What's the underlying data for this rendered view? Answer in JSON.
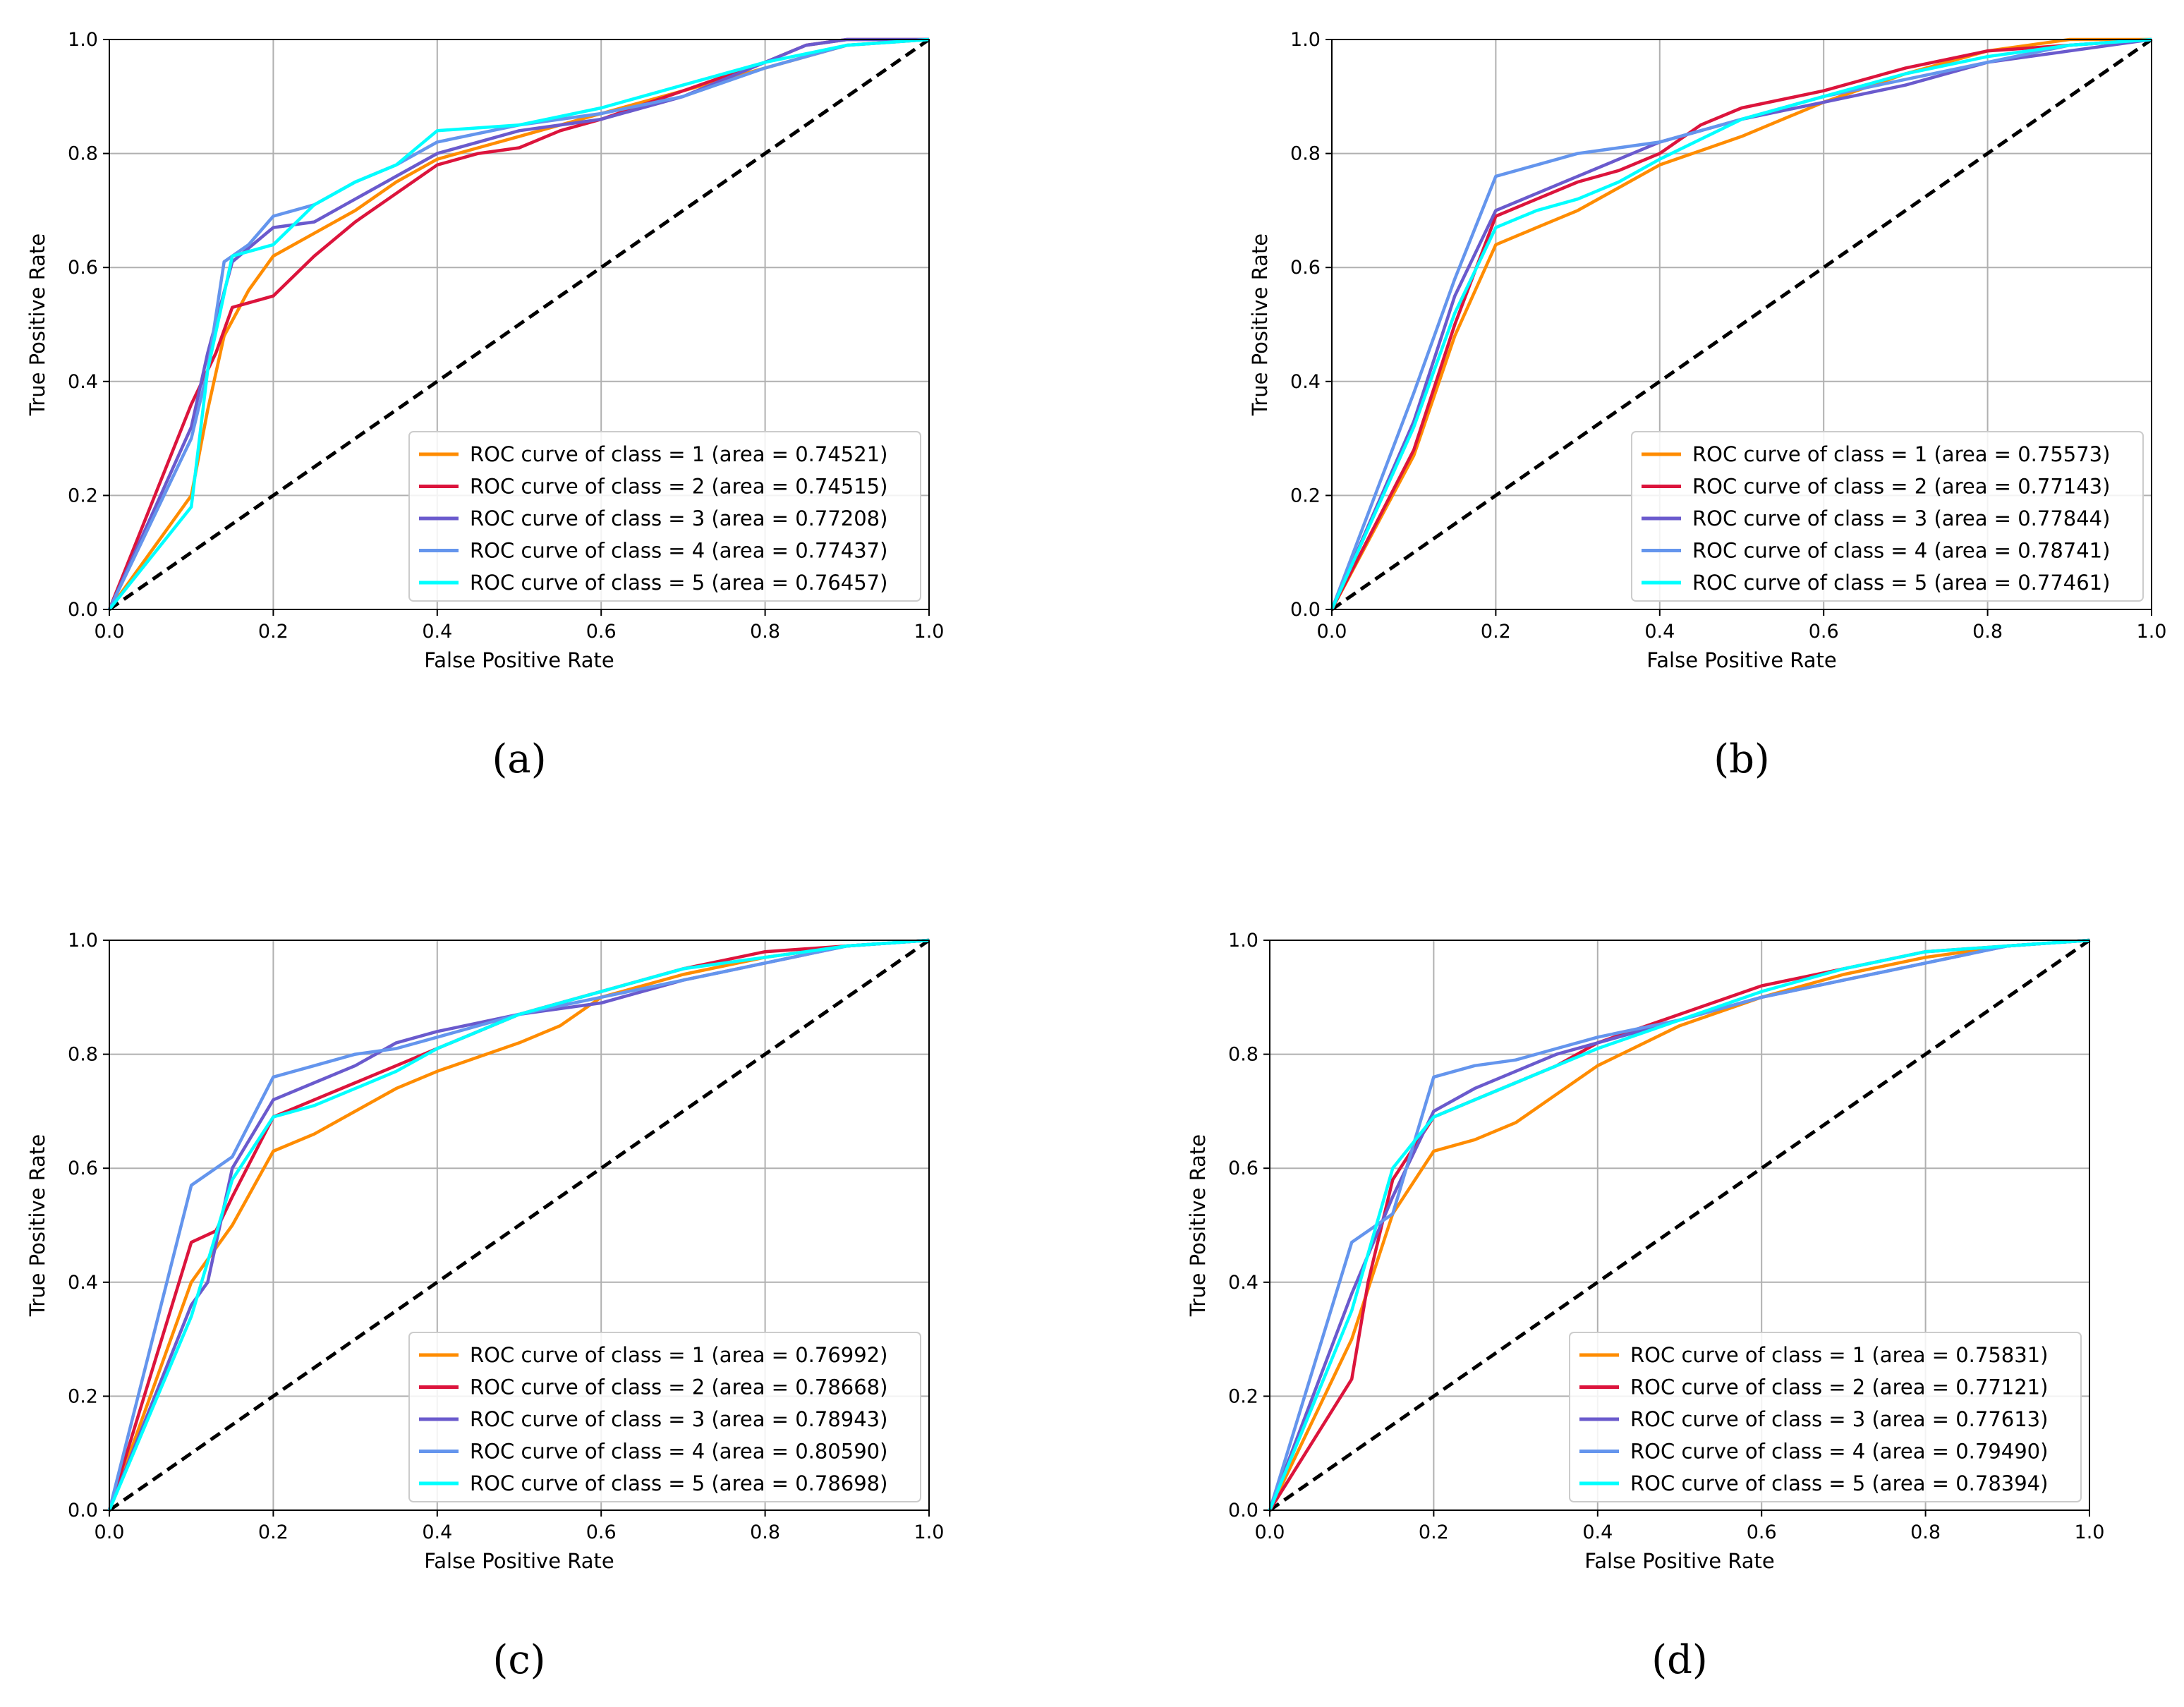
{
  "colors": {
    "class1": "#ff8c00",
    "class2": "#dc143c",
    "class3": "#6a5acd",
    "class4": "#6495ed",
    "class5": "#00ffff",
    "diagonal": "#000000",
    "grid": "#b0b0b0"
  },
  "chart_data": [
    {
      "type": "line",
      "caption": "(a)",
      "xlabel": "False Positive Rate",
      "ylabel": "True Positive Rate",
      "xlim": [
        0,
        1
      ],
      "ylim": [
        0,
        1
      ],
      "xticks": [
        "0.0",
        "0.2",
        "0.4",
        "0.6",
        "0.8",
        "1.0"
      ],
      "yticks": [
        "0.0",
        "0.2",
        "0.4",
        "0.6",
        "0.8",
        "1.0"
      ],
      "grid": true,
      "legend_position": "lower-right",
      "series": [
        {
          "name": "ROC curve of class = 1 (area = 0.74521)",
          "color_key": "class1",
          "x": [
            0,
            0.1,
            0.12,
            0.14,
            0.17,
            0.2,
            0.25,
            0.3,
            0.35,
            0.4,
            0.45,
            0.5,
            0.6,
            0.7,
            0.8,
            0.9,
            1.0
          ],
          "y": [
            0,
            0.2,
            0.35,
            0.48,
            0.56,
            0.62,
            0.66,
            0.7,
            0.75,
            0.79,
            0.81,
            0.83,
            0.87,
            0.91,
            0.95,
            0.99,
            1.0
          ]
        },
        {
          "name": "ROC curve of class = 2 (area = 0.74515)",
          "color_key": "class2",
          "x": [
            0,
            0.1,
            0.13,
            0.15,
            0.2,
            0.25,
            0.3,
            0.35,
            0.4,
            0.45,
            0.5,
            0.55,
            0.6,
            0.7,
            0.8,
            0.85,
            0.9,
            1.0
          ],
          "y": [
            0,
            0.36,
            0.45,
            0.53,
            0.55,
            0.62,
            0.68,
            0.73,
            0.78,
            0.8,
            0.81,
            0.84,
            0.86,
            0.91,
            0.96,
            0.99,
            1.0,
            1.0
          ]
        },
        {
          "name": "ROC curve of class = 3 (area = 0.77208)",
          "color_key": "class3",
          "x": [
            0,
            0.1,
            0.12,
            0.15,
            0.2,
            0.25,
            0.3,
            0.35,
            0.4,
            0.5,
            0.6,
            0.7,
            0.8,
            0.85,
            0.9,
            1.0
          ],
          "y": [
            0,
            0.32,
            0.45,
            0.61,
            0.67,
            0.68,
            0.72,
            0.76,
            0.8,
            0.84,
            0.86,
            0.9,
            0.96,
            0.99,
            1.0,
            1.0
          ]
        },
        {
          "name": "ROC curve of class = 4 (area = 0.77437)",
          "color_key": "class4",
          "x": [
            0,
            0.1,
            0.12,
            0.14,
            0.17,
            0.2,
            0.25,
            0.3,
            0.35,
            0.4,
            0.5,
            0.6,
            0.7,
            0.8,
            0.9,
            1.0
          ],
          "y": [
            0,
            0.3,
            0.42,
            0.61,
            0.64,
            0.69,
            0.71,
            0.75,
            0.78,
            0.82,
            0.85,
            0.87,
            0.9,
            0.95,
            0.99,
            1.0
          ]
        },
        {
          "name": "ROC curve of class = 5 (area = 0.76457)",
          "color_key": "class5",
          "x": [
            0,
            0.1,
            0.12,
            0.15,
            0.2,
            0.25,
            0.3,
            0.35,
            0.4,
            0.5,
            0.6,
            0.7,
            0.8,
            0.9,
            1.0
          ],
          "y": [
            0,
            0.18,
            0.42,
            0.62,
            0.64,
            0.71,
            0.75,
            0.78,
            0.84,
            0.85,
            0.88,
            0.92,
            0.96,
            0.99,
            1.0
          ]
        }
      ]
    },
    {
      "type": "line",
      "caption": "(b)",
      "xlabel": "False Positive Rate",
      "ylabel": "True Positive Rate",
      "xlim": [
        0,
        1
      ],
      "ylim": [
        0,
        1
      ],
      "xticks": [
        "0.0",
        "0.2",
        "0.4",
        "0.6",
        "0.8",
        "1.0"
      ],
      "yticks": [
        "0.0",
        "0.2",
        "0.4",
        "0.6",
        "0.8",
        "1.0"
      ],
      "grid": true,
      "legend_position": "lower-right",
      "series": [
        {
          "name": "ROC curve of class = 1 (area = 0.75573)",
          "color_key": "class1",
          "x": [
            0,
            0.1,
            0.15,
            0.2,
            0.25,
            0.3,
            0.35,
            0.4,
            0.5,
            0.6,
            0.7,
            0.8,
            0.9,
            1.0
          ],
          "y": [
            0,
            0.27,
            0.48,
            0.64,
            0.67,
            0.7,
            0.74,
            0.78,
            0.83,
            0.89,
            0.94,
            0.98,
            1.0,
            1.0
          ]
        },
        {
          "name": "ROC curve of class = 2 (area = 0.77143)",
          "color_key": "class2",
          "x": [
            0,
            0.1,
            0.15,
            0.2,
            0.25,
            0.3,
            0.35,
            0.4,
            0.45,
            0.5,
            0.6,
            0.7,
            0.8,
            0.9,
            1.0
          ],
          "y": [
            0,
            0.28,
            0.5,
            0.69,
            0.72,
            0.75,
            0.77,
            0.8,
            0.85,
            0.88,
            0.91,
            0.95,
            0.98,
            0.99,
            1.0
          ]
        },
        {
          "name": "ROC curve of class = 3 (area = 0.77844)",
          "color_key": "class3",
          "x": [
            0,
            0.1,
            0.15,
            0.2,
            0.25,
            0.3,
            0.35,
            0.4,
            0.45,
            0.5,
            0.6,
            0.7,
            0.8,
            0.9,
            1.0
          ],
          "y": [
            0,
            0.33,
            0.55,
            0.7,
            0.73,
            0.76,
            0.79,
            0.82,
            0.84,
            0.86,
            0.89,
            0.92,
            0.96,
            0.98,
            1.0
          ]
        },
        {
          "name": "ROC curve of class = 4 (area = 0.78741)",
          "color_key": "class4",
          "x": [
            0,
            0.1,
            0.15,
            0.2,
            0.25,
            0.3,
            0.35,
            0.4,
            0.5,
            0.6,
            0.7,
            0.8,
            0.9,
            1.0
          ],
          "y": [
            0,
            0.38,
            0.58,
            0.76,
            0.78,
            0.8,
            0.81,
            0.82,
            0.86,
            0.9,
            0.93,
            0.96,
            0.99,
            1.0
          ]
        },
        {
          "name": "ROC curve of class = 5 (area = 0.77461)",
          "color_key": "class5",
          "x": [
            0,
            0.1,
            0.15,
            0.2,
            0.25,
            0.3,
            0.35,
            0.4,
            0.5,
            0.6,
            0.7,
            0.8,
            0.9,
            1.0
          ],
          "y": [
            0,
            0.32,
            0.52,
            0.67,
            0.7,
            0.72,
            0.75,
            0.79,
            0.86,
            0.9,
            0.94,
            0.97,
            0.99,
            1.0
          ]
        }
      ]
    },
    {
      "type": "line",
      "caption": "(c)",
      "xlabel": "False Positive Rate",
      "ylabel": "True Positive Rate",
      "xlim": [
        0,
        1
      ],
      "ylim": [
        0,
        1
      ],
      "xticks": [
        "0.0",
        "0.2",
        "0.4",
        "0.6",
        "0.8",
        "1.0"
      ],
      "yticks": [
        "0.0",
        "0.2",
        "0.4",
        "0.6",
        "0.8",
        "1.0"
      ],
      "grid": true,
      "legend_position": "lower-right",
      "series": [
        {
          "name": "ROC curve of class = 1 (area = 0.76992)",
          "color_key": "class1",
          "x": [
            0,
            0.1,
            0.15,
            0.2,
            0.25,
            0.3,
            0.35,
            0.4,
            0.5,
            0.55,
            0.6,
            0.7,
            0.8,
            0.9,
            1.0
          ],
          "y": [
            0,
            0.4,
            0.5,
            0.63,
            0.66,
            0.7,
            0.74,
            0.77,
            0.82,
            0.85,
            0.9,
            0.94,
            0.97,
            0.99,
            1.0
          ]
        },
        {
          "name": "ROC curve of class = 2 (area = 0.78668)",
          "color_key": "class2",
          "x": [
            0,
            0.1,
            0.13,
            0.15,
            0.2,
            0.25,
            0.3,
            0.35,
            0.4,
            0.5,
            0.6,
            0.7,
            0.8,
            0.9,
            1.0
          ],
          "y": [
            0,
            0.47,
            0.49,
            0.55,
            0.69,
            0.72,
            0.75,
            0.78,
            0.81,
            0.87,
            0.91,
            0.95,
            0.98,
            0.99,
            1.0
          ]
        },
        {
          "name": "ROC curve of class = 3 (area = 0.78943)",
          "color_key": "class3",
          "x": [
            0,
            0.1,
            0.12,
            0.15,
            0.2,
            0.25,
            0.3,
            0.35,
            0.4,
            0.5,
            0.6,
            0.7,
            0.8,
            0.9,
            1.0
          ],
          "y": [
            0,
            0.36,
            0.4,
            0.6,
            0.72,
            0.75,
            0.78,
            0.82,
            0.84,
            0.87,
            0.89,
            0.93,
            0.96,
            0.99,
            1.0
          ]
        },
        {
          "name": "ROC curve of class = 4 (area = 0.80590)",
          "color_key": "class4",
          "x": [
            0,
            0.1,
            0.15,
            0.2,
            0.25,
            0.3,
            0.35,
            0.4,
            0.5,
            0.6,
            0.7,
            0.8,
            0.9,
            1.0
          ],
          "y": [
            0,
            0.57,
            0.62,
            0.76,
            0.78,
            0.8,
            0.81,
            0.83,
            0.87,
            0.9,
            0.93,
            0.96,
            0.99,
            1.0
          ]
        },
        {
          "name": "ROC curve of class = 5 (area = 0.78698)",
          "color_key": "class5",
          "x": [
            0,
            0.1,
            0.15,
            0.2,
            0.25,
            0.3,
            0.35,
            0.4,
            0.5,
            0.6,
            0.7,
            0.8,
            0.9,
            1.0
          ],
          "y": [
            0,
            0.34,
            0.58,
            0.69,
            0.71,
            0.74,
            0.77,
            0.81,
            0.87,
            0.91,
            0.95,
            0.97,
            0.99,
            1.0
          ]
        }
      ]
    },
    {
      "type": "line",
      "caption": "(d)",
      "xlabel": "False Positive Rate",
      "ylabel": "True Positive Rate",
      "xlim": [
        0,
        1
      ],
      "ylim": [
        0,
        1
      ],
      "xticks": [
        "0.0",
        "0.2",
        "0.4",
        "0.6",
        "0.8",
        "1.0"
      ],
      "yticks": [
        "0.0",
        "0.2",
        "0.4",
        "0.6",
        "0.8",
        "1.0"
      ],
      "grid": true,
      "legend_position": "lower-right",
      "series": [
        {
          "name": "ROC curve of class = 1 (area = 0.75831)",
          "color_key": "class1",
          "x": [
            0,
            0.1,
            0.15,
            0.2,
            0.25,
            0.3,
            0.35,
            0.4,
            0.5,
            0.6,
            0.7,
            0.8,
            0.9,
            1.0
          ],
          "y": [
            0,
            0.3,
            0.52,
            0.63,
            0.65,
            0.68,
            0.73,
            0.78,
            0.85,
            0.9,
            0.94,
            0.97,
            0.99,
            1.0
          ]
        },
        {
          "name": "ROC curve of class = 2 (area = 0.77121)",
          "color_key": "class2",
          "x": [
            0,
            0.1,
            0.12,
            0.15,
            0.2,
            0.25,
            0.3,
            0.35,
            0.4,
            0.5,
            0.6,
            0.7,
            0.8,
            0.9,
            1.0
          ],
          "y": [
            0,
            0.23,
            0.4,
            0.58,
            0.69,
            0.72,
            0.75,
            0.78,
            0.82,
            0.87,
            0.92,
            0.95,
            0.98,
            0.99,
            1.0
          ]
        },
        {
          "name": "ROC curve of class = 3 (area = 0.77613)",
          "color_key": "class3",
          "x": [
            0,
            0.1,
            0.15,
            0.2,
            0.25,
            0.3,
            0.35,
            0.4,
            0.5,
            0.6,
            0.7,
            0.8,
            0.9,
            1.0
          ],
          "y": [
            0,
            0.38,
            0.55,
            0.7,
            0.74,
            0.77,
            0.8,
            0.82,
            0.86,
            0.9,
            0.93,
            0.96,
            0.99,
            1.0
          ]
        },
        {
          "name": "ROC curve of class = 4 (area = 0.79490)",
          "color_key": "class4",
          "x": [
            0,
            0.1,
            0.13,
            0.15,
            0.2,
            0.25,
            0.3,
            0.35,
            0.4,
            0.5,
            0.6,
            0.7,
            0.8,
            0.9,
            1.0
          ],
          "y": [
            0,
            0.47,
            0.5,
            0.52,
            0.76,
            0.78,
            0.79,
            0.81,
            0.83,
            0.86,
            0.9,
            0.93,
            0.96,
            0.99,
            1.0
          ]
        },
        {
          "name": "ROC curve of class = 5 (area = 0.78394)",
          "color_key": "class5",
          "x": [
            0,
            0.1,
            0.15,
            0.2,
            0.25,
            0.3,
            0.35,
            0.4,
            0.5,
            0.6,
            0.7,
            0.8,
            0.9,
            1.0
          ],
          "y": [
            0,
            0.35,
            0.6,
            0.69,
            0.72,
            0.75,
            0.78,
            0.81,
            0.86,
            0.91,
            0.95,
            0.98,
            0.99,
            1.0
          ]
        }
      ]
    }
  ]
}
